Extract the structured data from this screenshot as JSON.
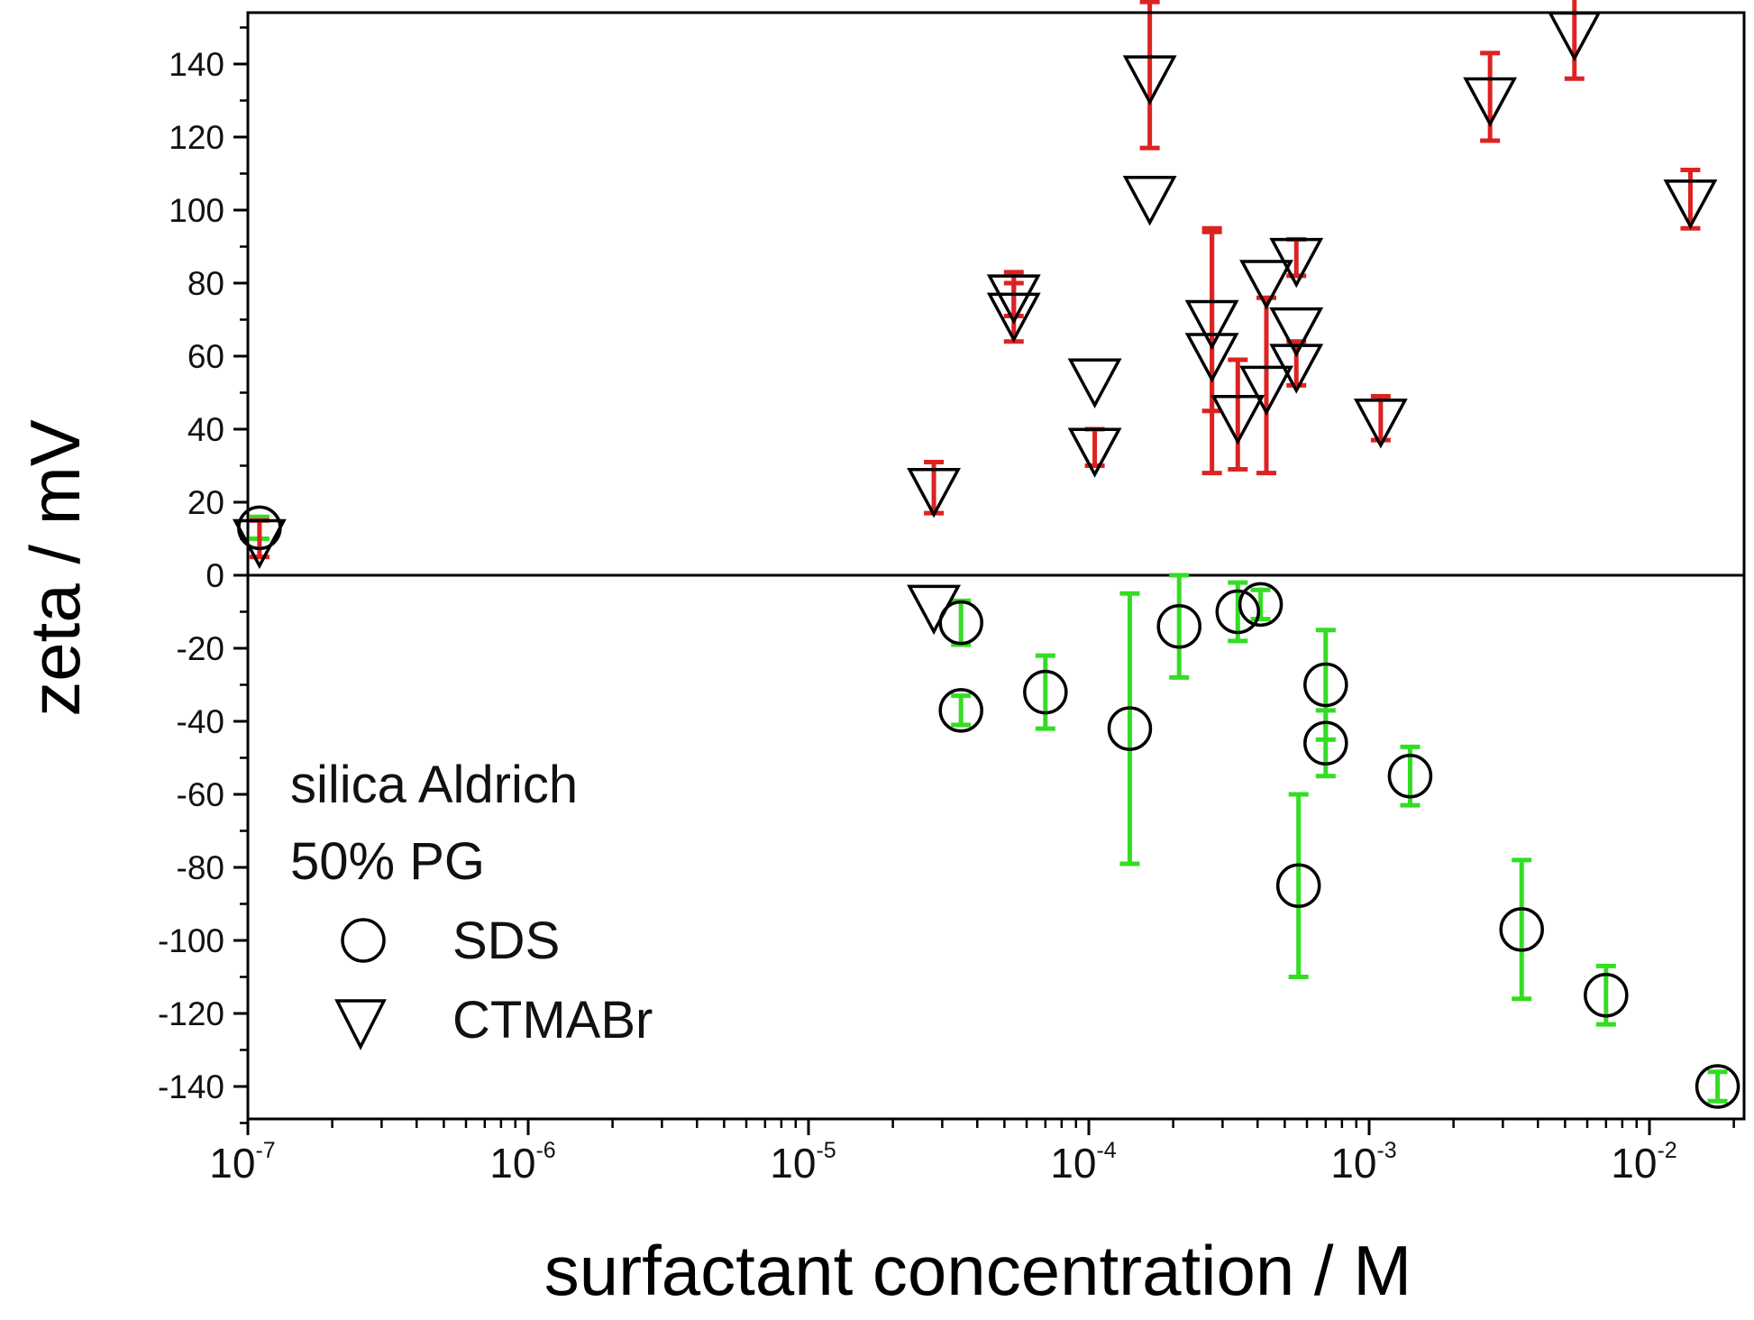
{
  "chart_data": {
    "type": "scatter",
    "title": "",
    "xlabel": "surfactant concentration / M",
    "ylabel": "zeta / mV",
    "xscale": "log",
    "xlim": [
      1e-07,
      0.022
    ],
    "ylim": [
      -150,
      155
    ],
    "x_ticks": [
      {
        "value": 1e-07,
        "base": "10",
        "exp": "-7"
      },
      {
        "value": 1e-06,
        "base": "10",
        "exp": "-6"
      },
      {
        "value": 1e-05,
        "base": "10",
        "exp": "-5"
      },
      {
        "value": 0.0001,
        "base": "10",
        "exp": "-4"
      },
      {
        "value": 0.001,
        "base": "10",
        "exp": "-3"
      },
      {
        "value": 0.01,
        "base": "10",
        "exp": "-2"
      }
    ],
    "y_ticks": [
      140,
      120,
      100,
      80,
      60,
      40,
      20,
      0,
      -20,
      -40,
      -60,
      -80,
      -100,
      -120,
      -140
    ],
    "zero_line": true,
    "annotations": [
      "silica Aldrich",
      "50% PG"
    ],
    "legend_position": "bottom-left",
    "series": [
      {
        "name": "SDS",
        "marker": "circle",
        "error_color": "#33dd22",
        "points": [
          {
            "x": 1.1e-07,
            "y": 13,
            "err": 3
          },
          {
            "x": 3.5e-05,
            "y": -13,
            "err": 6
          },
          {
            "x": 3.5e-05,
            "y": -37,
            "err": 4
          },
          {
            "x": 7e-05,
            "y": -32,
            "err": 10
          },
          {
            "x": 0.00014,
            "y": -42,
            "err": 37
          },
          {
            "x": 0.00021,
            "y": -14,
            "err": 14
          },
          {
            "x": 0.00034,
            "y": -10,
            "err": 8
          },
          {
            "x": 0.00041,
            "y": -8,
            "err": 4
          },
          {
            "x": 0.00056,
            "y": -85,
            "err": 25
          },
          {
            "x": 0.0007,
            "y": -30,
            "err": 15
          },
          {
            "x": 0.0007,
            "y": -46,
            "err": 9
          },
          {
            "x": 0.0014,
            "y": -55,
            "err": 8
          },
          {
            "x": 0.0035,
            "y": -97,
            "err": 19
          },
          {
            "x": 0.007,
            "y": -115,
            "err": 8
          },
          {
            "x": 0.0175,
            "y": -140,
            "err": 4
          }
        ]
      },
      {
        "name": "CTMABr",
        "marker": "triangle-down",
        "error_color": "#dd2222",
        "points": [
          {
            "x": 1.1e-07,
            "y": 10,
            "err": 5
          },
          {
            "x": 2.8e-05,
            "y": 24,
            "err": 7
          },
          {
            "x": 2.8e-05,
            "y": -8,
            "err": 0
          },
          {
            "x": 5.4e-05,
            "y": 77,
            "err": 6
          },
          {
            "x": 5.4e-05,
            "y": 72,
            "err": 8
          },
          {
            "x": 0.000105,
            "y": 54,
            "err": 0
          },
          {
            "x": 0.000105,
            "y": 35,
            "err": 5
          },
          {
            "x": 0.000165,
            "y": 137,
            "err": 20
          },
          {
            "x": 0.000165,
            "y": 104,
            "err": 0
          },
          {
            "x": 0.000275,
            "y": 70,
            "err": 25
          },
          {
            "x": 0.000275,
            "y": 61,
            "err": 33
          },
          {
            "x": 0.00034,
            "y": 44,
            "err": 15
          },
          {
            "x": 0.00043,
            "y": 81,
            "err": 0
          },
          {
            "x": 0.00043,
            "y": 52,
            "err": 24
          },
          {
            "x": 0.00055,
            "y": 87,
            "err": 5
          },
          {
            "x": 0.00055,
            "y": 68,
            "err": 0
          },
          {
            "x": 0.00055,
            "y": 58,
            "err": 6
          },
          {
            "x": 0.0011,
            "y": 43,
            "err": 6
          },
          {
            "x": 0.0027,
            "y": 131,
            "err": 12
          },
          {
            "x": 0.0054,
            "y": 149,
            "err": 13
          },
          {
            "x": 0.014,
            "y": 103,
            "err": 8
          }
        ]
      }
    ]
  }
}
